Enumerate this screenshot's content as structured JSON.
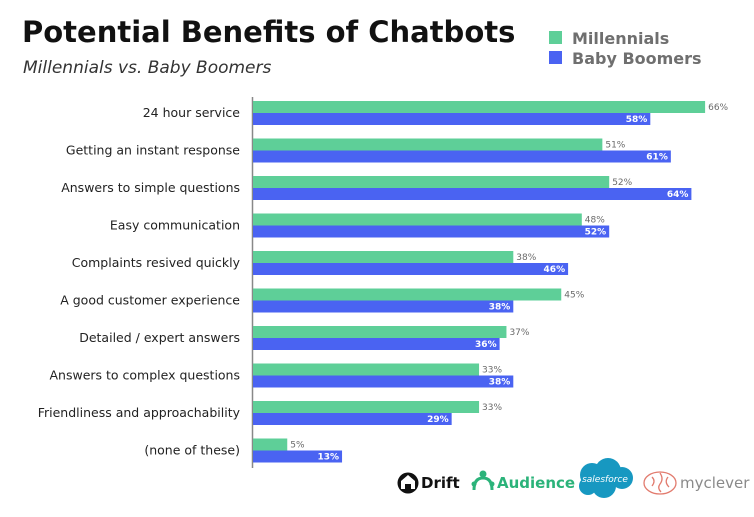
{
  "chart_data": {
    "type": "bar",
    "orientation": "horizontal",
    "title": "Potential Benefits of Chatbots",
    "subtitle": "Millennials vs. Baby Boomers",
    "categories": [
      "24 hour service",
      "Getting an instant response",
      "Answers to simple questions",
      "Easy communication",
      "Complaints resived quickly",
      "A good customer experience",
      "Detailed / expert answers",
      "Answers to complex questions",
      "Friendliness and approachability",
      "(none of these)"
    ],
    "series": [
      {
        "name": "Millennials",
        "color": "#5ecf98",
        "values": [
          66,
          51,
          52,
          48,
          38,
          45,
          37,
          33,
          33,
          5
        ]
      },
      {
        "name": "Baby Boomers",
        "color": "#4a63f2",
        "values": [
          58,
          61,
          64,
          52,
          46,
          38,
          36,
          38,
          29,
          13
        ]
      }
    ],
    "value_suffix": "%",
    "xlim": [
      0,
      75
    ],
    "grid": false,
    "legend_position": "top-right"
  },
  "logos": {
    "drift": {
      "text": "Drift",
      "icon": "drift-icon"
    },
    "audience": {
      "text": "Audience",
      "icon": "audience-icon"
    },
    "salesforce": {
      "text": "salesforce",
      "icon": "salesforce-cloud-icon"
    },
    "myclever": {
      "text": "myclever",
      "icon": "brain-icon"
    }
  }
}
